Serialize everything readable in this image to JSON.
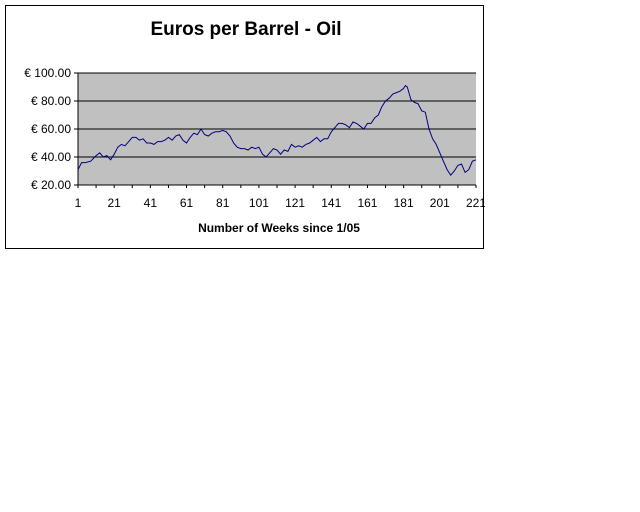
{
  "chart_data": {
    "type": "line",
    "title": "Euros per Barrel - Oil",
    "xlabel": "Number of Weeks since 1/05",
    "ylabel": "",
    "ylim": [
      20,
      100
    ],
    "xlim": [
      1,
      221
    ],
    "y_ticks": [
      {
        "value": 20,
        "label": "€ 20.00"
      },
      {
        "value": 40,
        "label": "€ 40.00"
      },
      {
        "value": 60,
        "label": "€ 60.00"
      },
      {
        "value": 80,
        "label": "€ 80.00"
      },
      {
        "value": 100,
        "label": "€ 100.00"
      }
    ],
    "x_ticks": [
      {
        "value": 1,
        "label": "1"
      },
      {
        "value": 21,
        "label": "21"
      },
      {
        "value": 41,
        "label": "41"
      },
      {
        "value": 61,
        "label": "61"
      },
      {
        "value": 81,
        "label": "81"
      },
      {
        "value": 101,
        "label": "101"
      },
      {
        "value": 121,
        "label": "121"
      },
      {
        "value": 141,
        "label": "141"
      },
      {
        "value": 161,
        "label": "161"
      },
      {
        "value": 181,
        "label": "181"
      },
      {
        "value": 201,
        "label": "201"
      },
      {
        "value": 221,
        "label": "221"
      }
    ],
    "grid": true,
    "legend": "none",
    "colors": {
      "line": "#000080",
      "plot_background": "#c0c0c0",
      "gridline": "#000000"
    },
    "series": [
      {
        "x": [
          1,
          3,
          5,
          8,
          11,
          13,
          15,
          17,
          19,
          21,
          23,
          25,
          27,
          29,
          31,
          33,
          35,
          37,
          39,
          41,
          43,
          45,
          47,
          49,
          51,
          53,
          55,
          57,
          59,
          61,
          63,
          65,
          67,
          69,
          71,
          73,
          75,
          77,
          79,
          81,
          83,
          85,
          87,
          89,
          91,
          93,
          95,
          97,
          99,
          101,
          103,
          105,
          107,
          109,
          111,
          113,
          115,
          117,
          119,
          121,
          123,
          125,
          127,
          129,
          131,
          133,
          135,
          137,
          139,
          141,
          143,
          145,
          147,
          149,
          151,
          153,
          155,
          157,
          159,
          161,
          163,
          165,
          167,
          169,
          171,
          173,
          175,
          177,
          179,
          181,
          182,
          183,
          185,
          187,
          189,
          191,
          193,
          195,
          197,
          199,
          201,
          203,
          205,
          207,
          209,
          211,
          213,
          215,
          217,
          219,
          221
        ],
        "values": [
          31,
          36,
          36,
          37,
          41,
          43,
          40,
          41,
          38,
          42,
          47,
          49,
          48,
          51,
          54,
          54,
          52,
          53,
          50,
          50,
          49,
          51,
          51,
          52,
          54,
          52,
          55,
          56,
          52,
          50,
          54,
          57,
          56,
          60,
          56,
          55,
          57,
          58,
          58,
          59,
          58,
          55,
          50,
          47,
          46,
          46,
          45,
          47,
          46,
          47,
          42,
          40,
          43,
          46,
          45,
          42,
          45,
          44,
          49,
          47,
          48,
          47,
          49,
          50,
          52,
          54,
          51,
          53,
          53,
          58,
          61,
          64,
          64,
          63,
          61,
          65,
          64,
          62,
          60,
          64,
          64,
          68,
          70,
          76,
          80,
          82,
          85,
          86,
          87,
          89,
          91,
          90,
          81,
          79,
          78,
          73,
          72,
          60,
          53,
          49,
          43,
          37,
          31,
          27,
          30,
          34,
          35,
          29,
          31,
          37,
          38
        ]
      }
    ]
  }
}
